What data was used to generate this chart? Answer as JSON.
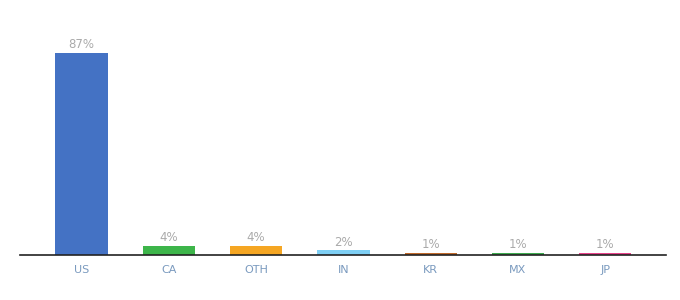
{
  "categories": [
    "US",
    "CA",
    "OTH",
    "IN",
    "KR",
    "MX",
    "JP"
  ],
  "values": [
    87,
    4,
    4,
    2,
    1,
    1,
    1
  ],
  "bar_colors": [
    "#4472c4",
    "#3db54a",
    "#f5a623",
    "#7ecff4",
    "#c0692a",
    "#3daa4e",
    "#e8438b"
  ],
  "labels": [
    "87%",
    "4%",
    "4%",
    "2%",
    "1%",
    "1%",
    "1%"
  ],
  "ylim": [
    0,
    97
  ],
  "background_color": "#ffffff",
  "label_color": "#aaaaaa",
  "tick_color": "#7a9abf",
  "bar_width": 0.6,
  "label_fontsize": 8.5,
  "tick_fontsize": 8.0
}
